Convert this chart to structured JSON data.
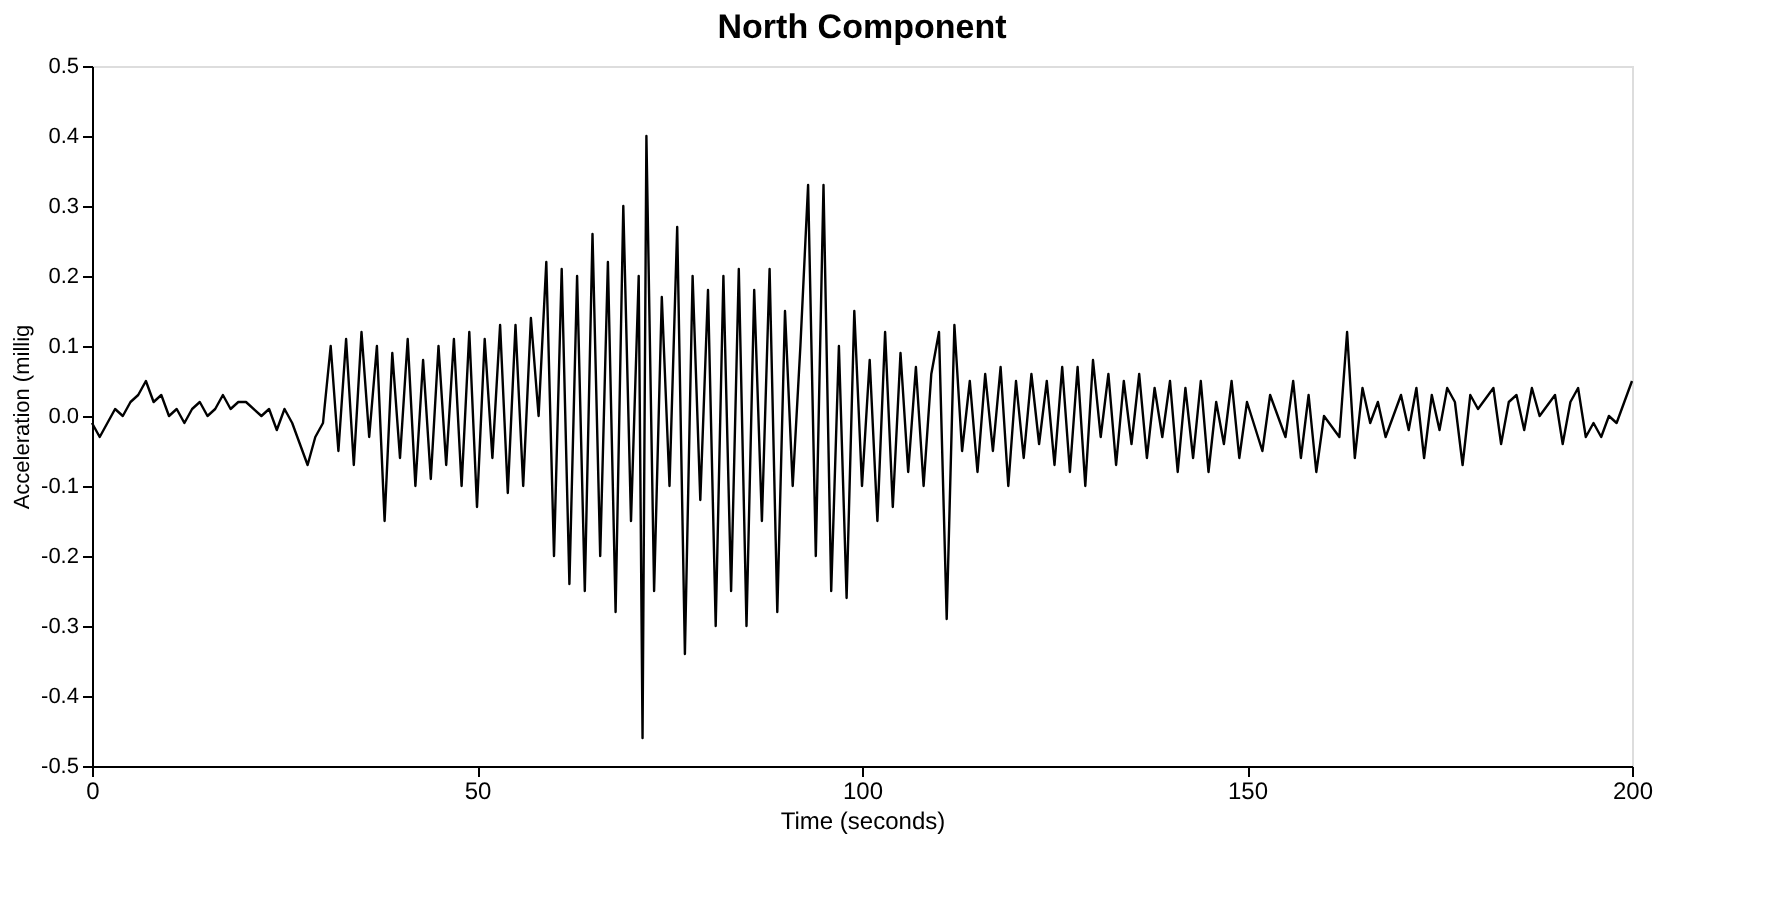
{
  "chart_data": {
    "type": "line",
    "title": "North Component",
    "xlabel": "Time (seconds)",
    "ylabel": "Acceleration (millig",
    "xlim": [
      0,
      200
    ],
    "xticks": [
      0,
      50,
      100,
      150,
      200
    ],
    "ylim": [
      -0.5,
      0.5
    ],
    "yticks": [
      -0.5,
      -0.4,
      -0.3,
      -0.2,
      -0.1,
      {
        "value": 0,
        "label": "0.0"
      },
      0.1,
      0.2,
      0.3,
      0.4,
      0.5
    ],
    "grid": false,
    "legend": false,
    "marker": "none",
    "line_style": "solid",
    "series": [
      {
        "color": "#000000",
        "x": [
          0,
          1,
          2,
          3,
          4,
          5,
          6,
          7,
          8,
          9,
          10,
          11,
          12,
          13,
          14,
          15,
          16,
          17,
          18,
          19,
          20,
          22,
          23,
          24,
          25,
          26,
          27,
          28,
          29,
          30,
          31,
          32,
          33,
          34,
          35,
          36,
          37,
          38,
          39,
          40,
          41,
          42,
          43,
          44,
          45,
          46,
          47,
          48,
          49,
          50,
          51,
          52,
          53,
          54,
          55,
          56,
          57,
          58,
          59,
          60,
          61,
          62,
          63,
          64,
          65,
          66,
          67,
          68,
          69,
          70,
          71,
          71.5,
          72,
          73,
          74,
          75,
          76,
          77,
          78,
          79,
          80,
          81,
          82,
          83,
          84,
          85,
          86,
          87,
          88,
          89,
          90,
          91,
          92,
          93,
          94,
          95,
          96,
          97,
          98,
          99,
          100,
          101,
          102,
          103,
          104,
          105,
          106,
          107,
          108,
          109,
          110,
          111,
          112,
          113,
          114,
          115,
          116,
          117,
          118,
          119,
          120,
          121,
          122,
          123,
          124,
          125,
          126,
          127,
          128,
          129,
          130,
          131,
          132,
          133,
          134,
          135,
          136,
          137,
          138,
          139,
          140,
          141,
          142,
          143,
          144,
          145,
          146,
          147,
          148,
          149,
          150,
          152,
          153,
          155,
          156,
          157,
          158,
          159,
          160,
          162,
          163,
          164,
          165,
          166,
          167,
          168,
          170,
          171,
          172,
          173,
          174,
          175,
          176,
          177,
          178,
          179,
          180,
          182,
          183,
          184,
          185,
          186,
          187,
          188,
          190,
          191,
          192,
          193,
          194,
          195,
          196,
          197,
          198,
          199,
          200
        ],
        "values": [
          -0.01,
          -0.03,
          -0.01,
          0.01,
          0.0,
          0.02,
          0.03,
          0.05,
          0.02,
          0.03,
          0.0,
          0.01,
          -0.01,
          0.01,
          0.02,
          0.0,
          0.01,
          0.03,
          0.01,
          0.02,
          0.02,
          0.0,
          0.01,
          -0.02,
          0.01,
          -0.01,
          -0.04,
          -0.07,
          -0.03,
          -0.01,
          0.1,
          -0.05,
          0.11,
          -0.07,
          0.12,
          -0.03,
          0.1,
          -0.15,
          0.09,
          -0.06,
          0.11,
          -0.1,
          0.08,
          -0.09,
          0.1,
          -0.07,
          0.11,
          -0.1,
          0.12,
          -0.13,
          0.11,
          -0.06,
          0.13,
          -0.11,
          0.13,
          -0.1,
          0.14,
          0.0,
          0.22,
          -0.2,
          0.21,
          -0.24,
          0.2,
          -0.25,
          0.26,
          -0.2,
          0.22,
          -0.28,
          0.3,
          -0.15,
          0.2,
          -0.46,
          0.4,
          -0.25,
          0.17,
          -0.1,
          0.27,
          -0.34,
          0.2,
          -0.12,
          0.18,
          -0.3,
          0.2,
          -0.25,
          0.21,
          -0.3,
          0.18,
          -0.15,
          0.21,
          -0.28,
          0.15,
          -0.1,
          0.1,
          0.33,
          -0.2,
          0.33,
          -0.25,
          0.1,
          -0.26,
          0.15,
          -0.1,
          0.08,
          -0.15,
          0.12,
          -0.13,
          0.09,
          -0.08,
          0.07,
          -0.1,
          0.06,
          0.12,
          -0.29,
          0.13,
          -0.05,
          0.05,
          -0.08,
          0.06,
          -0.05,
          0.07,
          -0.1,
          0.05,
          -0.06,
          0.06,
          -0.04,
          0.05,
          -0.07,
          0.07,
          -0.08,
          0.07,
          -0.1,
          0.08,
          -0.03,
          0.06,
          -0.07,
          0.05,
          -0.04,
          0.06,
          -0.06,
          0.04,
          -0.03,
          0.05,
          -0.08,
          0.04,
          -0.06,
          0.05,
          -0.08,
          0.02,
          -0.04,
          0.05,
          -0.06,
          0.02,
          -0.05,
          0.03,
          -0.03,
          0.05,
          -0.06,
          0.03,
          -0.08,
          0.0,
          -0.03,
          0.12,
          -0.06,
          0.04,
          -0.01,
          0.02,
          -0.03,
          0.03,
          -0.02,
          0.04,
          -0.06,
          0.03,
          -0.02,
          0.04,
          0.02,
          -0.07,
          0.03,
          0.01,
          0.04,
          -0.04,
          0.02,
          0.03,
          -0.02,
          0.04,
          0.0,
          0.03,
          -0.04,
          0.02,
          0.04,
          -0.03,
          -0.01,
          -0.03,
          0.0,
          -0.01,
          0.02,
          0.05
        ]
      }
    ]
  }
}
